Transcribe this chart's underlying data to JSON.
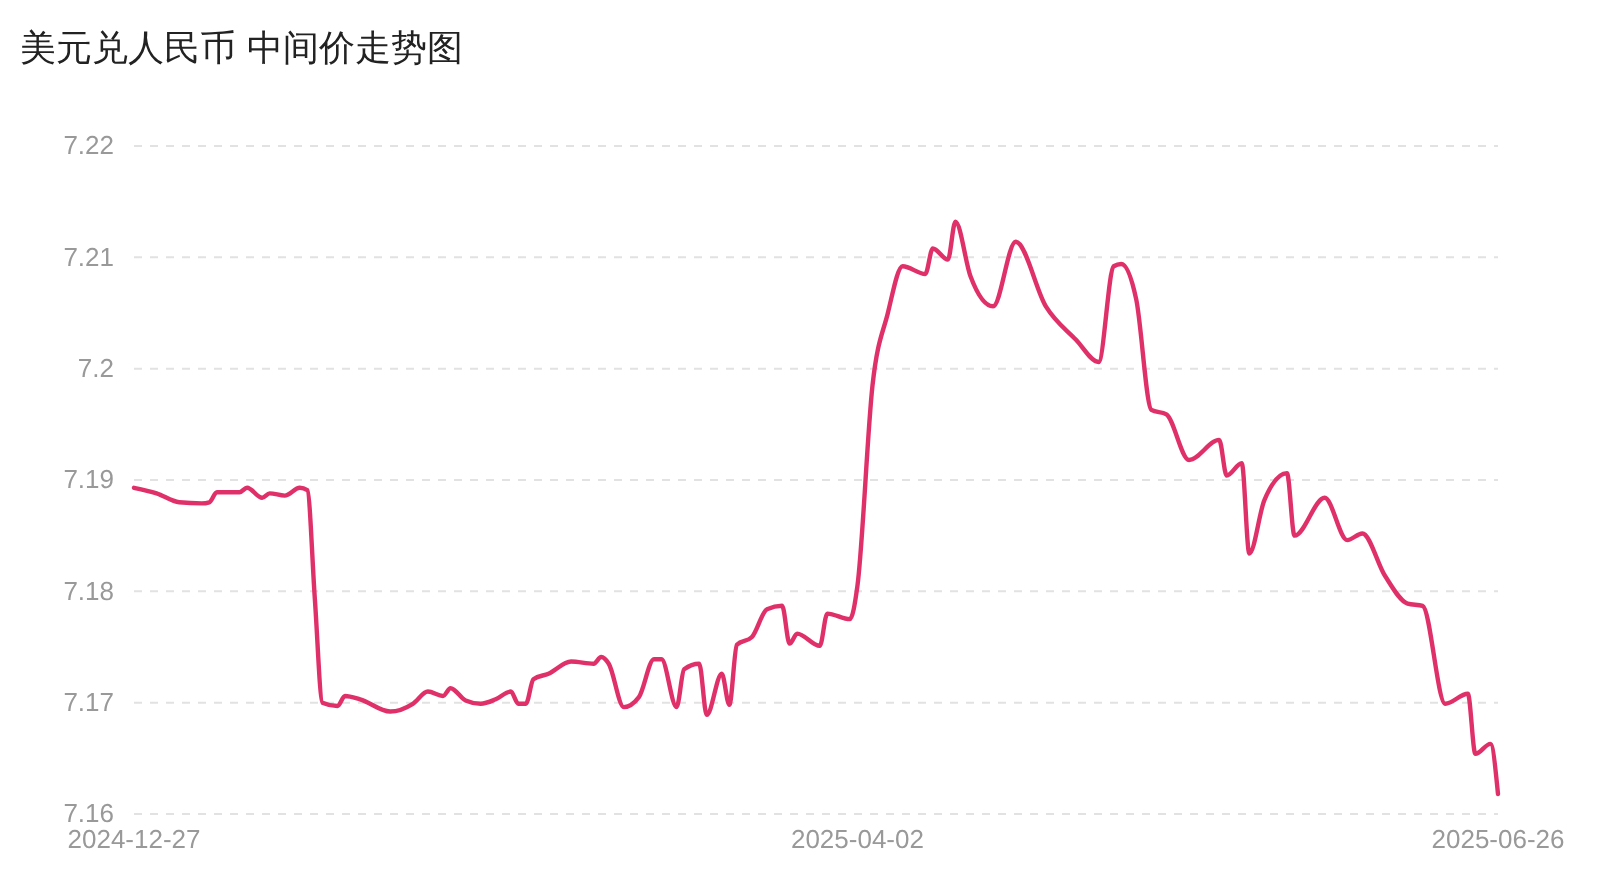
{
  "chart_data": {
    "type": "line",
    "title": "美元兑人民币 中间价走势图",
    "x": [
      "2024-12-27",
      "2024-12-30",
      "2025-01-02",
      "2025-01-05",
      "2025-01-06",
      "2025-01-07",
      "2025-01-10",
      "2025-01-11",
      "2025-01-13",
      "2025-01-14",
      "2025-01-16",
      "2025-01-18",
      "2025-01-19",
      "2025-01-20",
      "2025-01-21",
      "2025-01-23",
      "2025-01-24",
      "2025-01-26",
      "2025-01-30",
      "2025-02-02",
      "2025-02-04",
      "2025-02-06",
      "2025-02-07",
      "2025-02-09",
      "2025-02-11",
      "2025-02-13",
      "2025-02-15",
      "2025-02-16",
      "2025-02-17",
      "2025-02-18",
      "2025-02-20",
      "2025-02-23",
      "2025-02-26",
      "2025-02-27",
      "2025-02-28",
      "2025-03-02",
      "2025-03-04",
      "2025-03-06",
      "2025-03-07",
      "2025-03-09",
      "2025-03-10",
      "2025-03-12",
      "2025-03-13",
      "2025-03-15",
      "2025-03-16",
      "2025-03-17",
      "2025-03-19",
      "2025-03-21",
      "2025-03-23",
      "2025-03-24",
      "2025-03-25",
      "2025-03-28",
      "2025-03-29",
      "2025-04-01",
      "2025-04-02",
      "2025-04-04",
      "2025-04-06",
      "2025-04-08",
      "2025-04-11",
      "2025-04-12",
      "2025-04-14",
      "2025-04-15",
      "2025-04-17",
      "2025-04-20",
      "2025-04-23",
      "2025-04-27",
      "2025-05-01",
      "2025-05-04",
      "2025-05-06",
      "2025-05-07",
      "2025-05-09",
      "2025-05-11",
      "2025-05-13",
      "2025-05-16",
      "2025-05-20",
      "2025-05-21",
      "2025-05-23",
      "2025-05-24",
      "2025-05-26",
      "2025-05-29",
      "2025-05-30",
      "2025-06-03",
      "2025-06-06",
      "2025-06-08",
      "2025-06-11",
      "2025-06-14",
      "2025-06-16",
      "2025-06-19",
      "2025-06-22",
      "2025-06-23",
      "2025-06-25",
      "2025-06-26"
    ],
    "series": [
      {
        "color": "#e0306a",
        "values": [
          7.1893,
          7.1888,
          7.188,
          7.1879,
          7.188,
          7.1889,
          7.1889,
          7.1893,
          7.1884,
          7.1888,
          7.1886,
          7.1893,
          7.1891,
          7.1793,
          7.17,
          7.1697,
          7.1706,
          7.1703,
          7.1692,
          7.1699,
          7.171,
          7.1706,
          7.1713,
          7.1702,
          7.1699,
          7.1703,
          7.171,
          7.1699,
          7.1699,
          7.1721,
          7.1726,
          7.1737,
          7.1735,
          7.1741,
          7.1735,
          7.1696,
          7.1705,
          7.1739,
          7.1739,
          7.1696,
          7.173,
          7.1735,
          7.1689,
          7.1726,
          7.1698,
          7.1752,
          7.1759,
          7.1784,
          7.1787,
          7.1753,
          7.1762,
          7.1751,
          7.178,
          7.1775,
          7.1805,
          7.1985,
          7.2049,
          7.2092,
          7.2085,
          7.2108,
          7.2098,
          7.2132,
          7.2083,
          7.2056,
          7.2114,
          7.2056,
          7.2026,
          7.2006,
          7.2092,
          7.2094,
          7.2062,
          7.1963,
          7.1959,
          7.1918,
          7.1936,
          7.1904,
          7.1915,
          7.1834,
          7.1882,
          7.1906,
          7.185,
          7.1884,
          7.1846,
          7.1852,
          7.1814,
          7.1789,
          7.1787,
          7.1699,
          7.1708,
          7.1654,
          7.1663,
          7.1618
        ]
      }
    ],
    "xlim": [
      "2024-12-27",
      "2025-06-26"
    ],
    "xticks": [
      {
        "value": "2024-12-27",
        "label": "2024-12-27"
      },
      {
        "value": "2025-04-02",
        "label": "2025-04-02"
      },
      {
        "value": "2025-06-26",
        "label": "2025-06-26"
      }
    ],
    "ylim": [
      7.16,
      7.22
    ],
    "yticks": [
      7.16,
      7.17,
      7.18,
      7.19,
      7.2,
      7.21,
      7.22
    ],
    "grid": "y",
    "marker": "none",
    "line_style": "solid"
  }
}
